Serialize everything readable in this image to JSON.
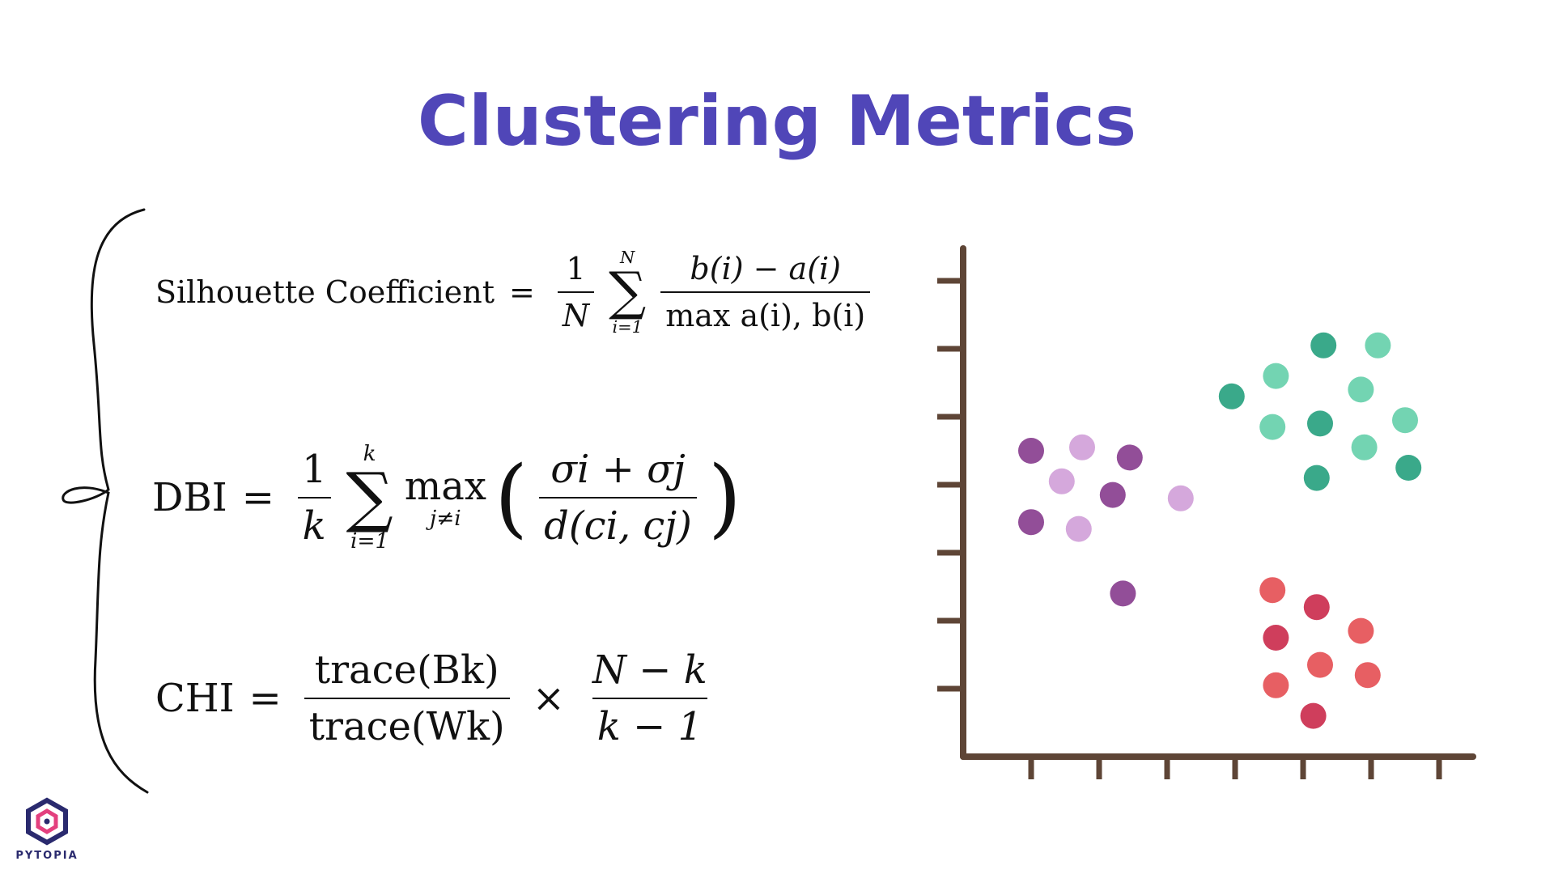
{
  "title": "Clustering Metrics",
  "colors": {
    "title": "#5046b8",
    "axis": "#5e4536",
    "purple_dark": "#924e98",
    "purple_light": "#d5a8dc",
    "teal_dark": "#3aa98a",
    "teal_light": "#73d4b2",
    "red_dark": "#cf3e5c",
    "red_light": "#e75f63",
    "logo_accent": "#e3407e",
    "logo_primary": "#2a2a6e"
  },
  "formulas": {
    "silhouette": {
      "lhs": "Silhouette Coefficient",
      "eq": "=",
      "coef_num": "1",
      "coef_den": "N",
      "sum_upper": "N",
      "sum_symbol": "∑",
      "sum_lower": "i=1",
      "numerator": "b(i) − a(i)",
      "denominator": "max a(i), b(i)"
    },
    "dbi": {
      "lhs": "DBI",
      "eq": "=",
      "coef_num": "1",
      "coef_den": "k",
      "sum_upper": "k",
      "sum_symbol": "∑",
      "sum_lower": "i=1",
      "max_label": "max",
      "max_lower": "j≠i",
      "lparen": "(",
      "numerator": "σi + σj",
      "denominator": "d(ci, cj)",
      "rparen": ")"
    },
    "chi": {
      "lhs": "CHI",
      "eq": "=",
      "left_num": "trace(Bk)",
      "left_den": "trace(Wk)",
      "times": "×",
      "right_num": "N − k",
      "right_den": "k − 1"
    }
  },
  "scatter": {
    "clusters": [
      {
        "id": "purple",
        "points": [
          {
            "x": 1.0,
            "y": 4.5,
            "shade": "dark"
          },
          {
            "x": 1.75,
            "y": 4.55,
            "shade": "light"
          },
          {
            "x": 2.45,
            "y": 4.4,
            "shade": "dark"
          },
          {
            "x": 1.45,
            "y": 4.05,
            "shade": "light"
          },
          {
            "x": 2.2,
            "y": 3.85,
            "shade": "dark"
          },
          {
            "x": 3.2,
            "y": 3.8,
            "shade": "light"
          },
          {
            "x": 1.0,
            "y": 3.45,
            "shade": "dark"
          },
          {
            "x": 1.7,
            "y": 3.35,
            "shade": "light"
          },
          {
            "x": 2.35,
            "y": 2.4,
            "shade": "dark"
          }
        ]
      },
      {
        "id": "teal",
        "points": [
          {
            "x": 5.3,
            "y": 6.05,
            "shade": "dark"
          },
          {
            "x": 6.1,
            "y": 6.05,
            "shade": "light"
          },
          {
            "x": 4.6,
            "y": 5.6,
            "shade": "light"
          },
          {
            "x": 5.85,
            "y": 5.4,
            "shade": "light"
          },
          {
            "x": 3.95,
            "y": 5.3,
            "shade": "dark"
          },
          {
            "x": 4.55,
            "y": 4.85,
            "shade": "light"
          },
          {
            "x": 5.25,
            "y": 4.9,
            "shade": "dark"
          },
          {
            "x": 6.5,
            "y": 4.95,
            "shade": "light"
          },
          {
            "x": 5.9,
            "y": 4.55,
            "shade": "light"
          },
          {
            "x": 5.2,
            "y": 4.1,
            "shade": "dark"
          },
          {
            "x": 6.55,
            "y": 4.25,
            "shade": "dark"
          }
        ]
      },
      {
        "id": "red",
        "points": [
          {
            "x": 4.55,
            "y": 2.45,
            "shade": "light"
          },
          {
            "x": 5.2,
            "y": 2.2,
            "shade": "dark"
          },
          {
            "x": 4.6,
            "y": 1.75,
            "shade": "dark"
          },
          {
            "x": 5.85,
            "y": 1.85,
            "shade": "light"
          },
          {
            "x": 5.25,
            "y": 1.35,
            "shade": "light"
          },
          {
            "x": 4.6,
            "y": 1.05,
            "shade": "light"
          },
          {
            "x": 5.95,
            "y": 1.2,
            "shade": "light"
          },
          {
            "x": 5.15,
            "y": 0.6,
            "shade": "dark"
          }
        ]
      }
    ],
    "x_ticks": 7,
    "y_ticks": 7
  },
  "logo": {
    "text": "PYTOPIA"
  }
}
